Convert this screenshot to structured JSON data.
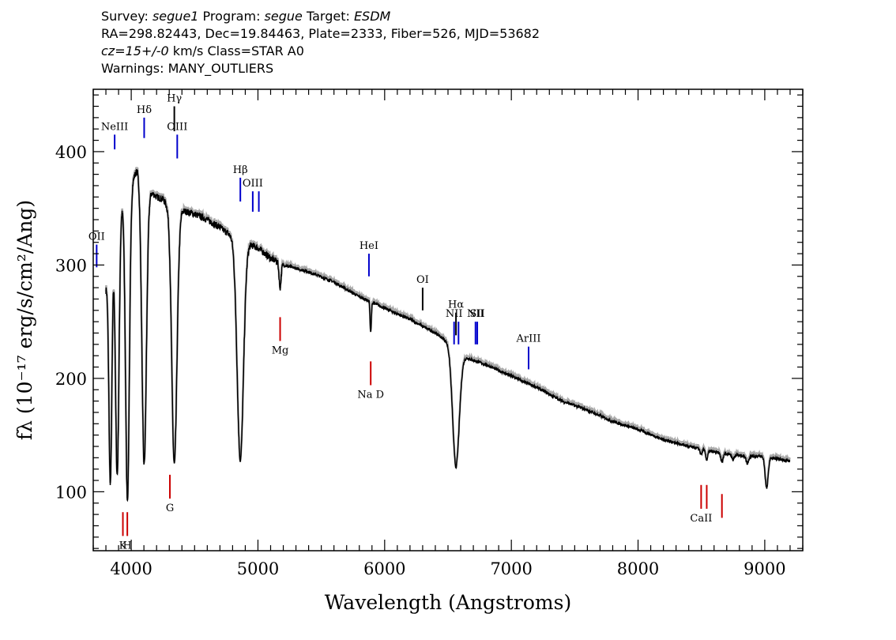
{
  "header": {
    "line1_segments": [
      {
        "text": "Survey: ",
        "italic": false
      },
      {
        "text": "segue1",
        "italic": true
      },
      {
        "text": " Program: ",
        "italic": false
      },
      {
        "text": "segue",
        "italic": true
      },
      {
        "text": " Target: ",
        "italic": false
      },
      {
        "text": "ESDM",
        "italic": true
      }
    ],
    "line2": "RA=298.82443, Dec=19.84463, Plate=2333, Fiber=526, MJD=53682",
    "line3_segments": [
      {
        "text": "cz=15+/-0",
        "italic": true
      },
      {
        "text": " km/s Class=STAR A0",
        "italic": false
      }
    ],
    "line4": "Warnings: MANY_OUTLIERS"
  },
  "chart_data": {
    "type": "line",
    "title": "",
    "xlabel": "Wavelength (Angstroms)",
    "ylabel": "fλ (10⁻¹⁷ erg/s/cm²/Ang)",
    "xlim": [
      3700,
      9300
    ],
    "ylim": [
      48,
      455
    ],
    "x_ticks": [
      4000,
      5000,
      6000,
      7000,
      8000,
      9000
    ],
    "y_ticks": [
      100,
      200,
      300,
      400
    ],
    "grid": false,
    "continuum_points": [
      [
        3800,
        280
      ],
      [
        3850,
        320
      ],
      [
        3900,
        350
      ],
      [
        3950,
        360
      ],
      [
        4000,
        372
      ],
      [
        4050,
        385
      ],
      [
        4100,
        375
      ],
      [
        4150,
        365
      ],
      [
        4200,
        360
      ],
      [
        4250,
        358
      ],
      [
        4300,
        350
      ],
      [
        4350,
        335
      ],
      [
        4400,
        348
      ],
      [
        4500,
        345
      ],
      [
        4600,
        340
      ],
      [
        4700,
        333
      ],
      [
        4800,
        325
      ],
      [
        4900,
        320
      ],
      [
        5000,
        315
      ],
      [
        5100,
        306
      ],
      [
        5200,
        300
      ],
      [
        5400,
        294
      ],
      [
        5600,
        285
      ],
      [
        5800,
        272
      ],
      [
        6000,
        262
      ],
      [
        6200,
        252
      ],
      [
        6400,
        240
      ],
      [
        6500,
        232
      ],
      [
        6600,
        220
      ],
      [
        6800,
        212
      ],
      [
        7000,
        202
      ],
      [
        7200,
        192
      ],
      [
        7400,
        180
      ],
      [
        7600,
        172
      ],
      [
        7800,
        162
      ],
      [
        8000,
        155
      ],
      [
        8200,
        146
      ],
      [
        8400,
        140
      ],
      [
        8600,
        135
      ],
      [
        8800,
        132
      ],
      [
        9000,
        131
      ],
      [
        9200,
        127
      ]
    ],
    "absorption_lines": [
      [
        3835,
        108,
        12
      ],
      [
        3889,
        115,
        14
      ],
      [
        3970,
        93,
        15
      ],
      [
        4102,
        124,
        18
      ],
      [
        4340,
        124,
        20
      ],
      [
        4861,
        128,
        25
      ],
      [
        5175,
        280,
        8
      ],
      [
        5890,
        240,
        5
      ],
      [
        6563,
        122,
        26
      ],
      [
        8498,
        133,
        8
      ],
      [
        8542,
        128,
        8
      ],
      [
        8662,
        126,
        9
      ],
      [
        8750,
        128,
        8
      ],
      [
        8863,
        125,
        10
      ],
      [
        9015,
        103,
        12
      ]
    ],
    "emission_markers": [
      {
        "label": "NeIII",
        "x": 3869,
        "y0": 402,
        "y1": 415,
        "color": "#0000cc"
      },
      {
        "label": "Hδ",
        "x": 4102,
        "y0": 430,
        "y1": 412,
        "color": "#0000cc"
      },
      {
        "label": "Hγ",
        "x": 4340,
        "y0": 440,
        "y1": 418,
        "color": "#000000"
      },
      {
        "label": "OIII",
        "x": 4363,
        "y0": 415,
        "y1": 394,
        "color": "#0000cc"
      },
      {
        "label": "Hβ",
        "x": 4861,
        "y0": 377,
        "y1": 356,
        "color": "#0000cc"
      },
      {
        "label": "OIII",
        "x": 4959,
        "y0": 365,
        "y1": 347,
        "color": "#0000cc"
      },
      {
        "label": "",
        "x": 5007,
        "y0": 365,
        "y1": 347,
        "color": "#0000cc"
      },
      {
        "label": "OII",
        "x": 3727,
        "y0": 318,
        "y1": 298,
        "color": "#0000cc"
      },
      {
        "label": "HeI",
        "x": 5876,
        "y0": 310,
        "y1": 290,
        "color": "#0000cc"
      },
      {
        "label": "OI",
        "x": 6300,
        "y0": 280,
        "y1": 260,
        "color": "#000000"
      },
      {
        "label": "NII",
        "x": 6548,
        "y0": 250,
        "y1": 230,
        "color": "#0000cc"
      },
      {
        "label": "Hα",
        "x": 6563,
        "y0": 258,
        "y1": 238,
        "color": "#000000"
      },
      {
        "label": "",
        "x": 6583,
        "y0": 250,
        "y1": 230,
        "color": "#0000cc"
      },
      {
        "label": "NII",
        "x": 6717,
        "y0": 250,
        "y1": 230,
        "color": "#0000cc"
      },
      {
        "label": "SII",
        "x": 6731,
        "y0": 250,
        "y1": 230,
        "color": "#0000cc"
      },
      {
        "label": "ArIII",
        "x": 7136,
        "y0": 228,
        "y1": 208,
        "color": "#0000cc"
      }
    ],
    "absorption_markers": [
      {
        "label": "Mg",
        "x": 5175,
        "y0": 254,
        "y1": 233,
        "color": "#cc0000"
      },
      {
        "label": "Na D",
        "x": 5890,
        "y0": 215,
        "y1": 194,
        "color": "#cc0000"
      },
      {
        "label": "G",
        "x": 4305,
        "y0": 115,
        "y1": 94,
        "color": "#cc0000"
      },
      {
        "label": "K",
        "x": 3934,
        "y0": 82,
        "y1": 61,
        "color": "#cc0000"
      },
      {
        "label": "H",
        "x": 3969,
        "y0": 82,
        "y1": 61,
        "color": "#cc0000"
      },
      {
        "label": "CaII",
        "x": 8498,
        "y0": 106,
        "y1": 85,
        "color": "#cc0000"
      },
      {
        "label": "",
        "x": 8542,
        "y0": 106,
        "y1": 85,
        "color": "#cc0000"
      },
      {
        "label": "",
        "x": 8662,
        "y0": 98,
        "y1": 77,
        "color": "#cc0000"
      }
    ]
  }
}
